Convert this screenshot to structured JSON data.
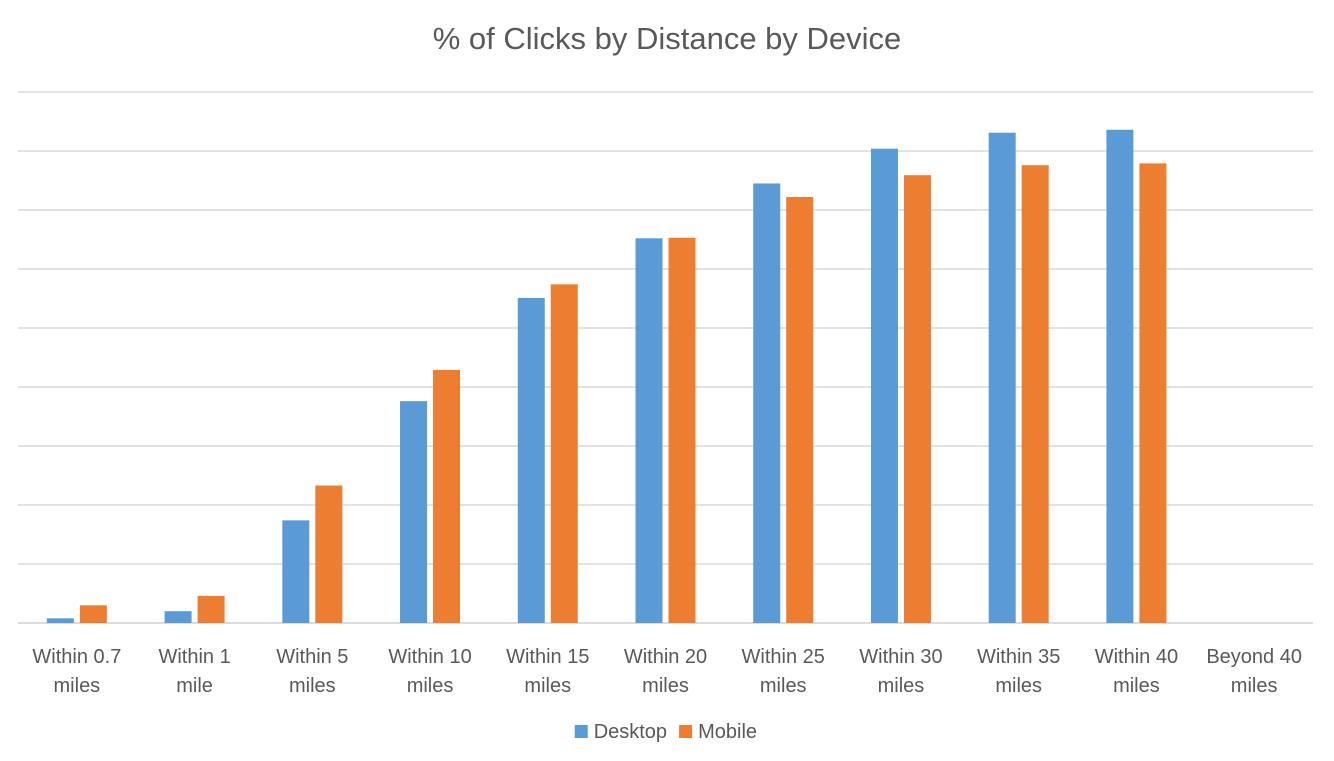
{
  "chart_data": {
    "type": "bar",
    "title": "% of Clicks by Distance by Device",
    "xlabel": "",
    "ylabel": "",
    "categories": [
      "Within 0.7 miles",
      "Within 1 mile",
      "Within 5 miles",
      "Within 10 miles",
      "Within 15 miles",
      "Within 20 miles",
      "Within 25 miles",
      "Within 30 miles",
      "Within 35 miles",
      "Within 40 miles",
      "Beyond 40 miles"
    ],
    "category_lines": [
      [
        "Within 0.7",
        "miles"
      ],
      [
        "Within 1",
        "mile"
      ],
      [
        "Within 5",
        "miles"
      ],
      [
        "Within 10",
        "miles"
      ],
      [
        "Within 15",
        "miles"
      ],
      [
        "Within 20",
        "miles"
      ],
      [
        "Within 25",
        "miles"
      ],
      [
        "Within 30",
        "miles"
      ],
      [
        "Within 35",
        "miles"
      ],
      [
        "Within 40",
        "miles"
      ],
      [
        "Beyond 40",
        "miles"
      ]
    ],
    "series": [
      {
        "name": "Desktop",
        "color": "#5b9bd5",
        "values": [
          0.8,
          2.0,
          17.4,
          37.6,
          55.1,
          65.2,
          74.5,
          80.4,
          83.1,
          83.6,
          null
        ]
      },
      {
        "name": "Mobile",
        "color": "#ed7d31",
        "values": [
          3.0,
          4.6,
          23.3,
          42.9,
          57.4,
          65.3,
          72.2,
          75.9,
          77.6,
          77.9,
          null
        ]
      }
    ],
    "ylim": [
      0,
      90
    ],
    "gridlines": true,
    "y_tick_labels_visible": false,
    "legend_position": "bottom"
  }
}
